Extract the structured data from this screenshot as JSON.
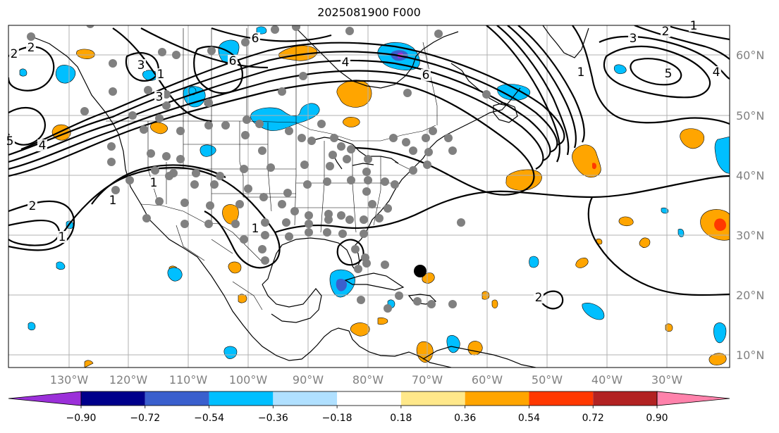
{
  "title": "2025081900 F000",
  "map": {
    "extent": {
      "lon_min": -145,
      "lon_max": -24,
      "lat_min": 7.5,
      "lat_max": 65
    },
    "lon_labels": [
      "130°W",
      "120°W",
      "110°W",
      "100°W",
      "90°W",
      "80°W",
      "70°W",
      "60°W",
      "50°W",
      "40°W",
      "30°W"
    ],
    "lat_labels": [
      "60°N",
      "50°N",
      "40°N",
      "30°N",
      "20°N",
      "10°N"
    ],
    "contour_labels": [
      "2",
      "1",
      "5",
      "6",
      "4",
      "3",
      "2",
      "1",
      "6",
      "3",
      "1",
      "1",
      "1",
      "2",
      "4",
      "2",
      "3",
      "5",
      "4",
      "1",
      "1",
      "2",
      "6"
    ]
  },
  "colorbar": {
    "tick_labels": [
      "−0.90",
      "−0.72",
      "−0.54",
      "−0.36",
      "−0.18",
      "0.18",
      "0.36",
      "0.54",
      "0.72",
      "0.90"
    ],
    "colors": [
      "#9b30d9",
      "#00008b",
      "#3a5fcd",
      "#00bfff",
      "#b0e0ff",
      "#ffffff",
      "#ffe88a",
      "#ffa500",
      "#ff3800",
      "#b22222",
      "#ff82ab"
    ]
  },
  "colors": {
    "accent": "#000000",
    "station": "#808080",
    "grid": "#b0b0b0"
  }
}
